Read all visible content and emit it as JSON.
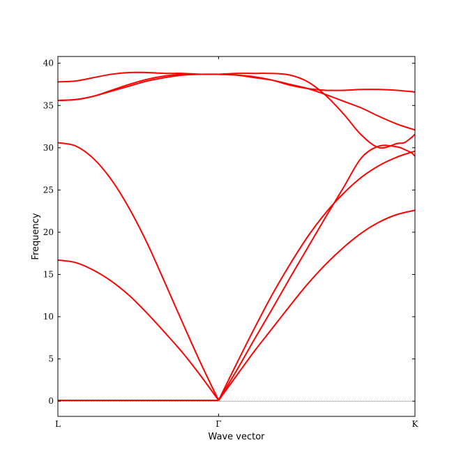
{
  "chart_data": {
    "type": "line",
    "title": "",
    "xlabel": "Wave vector",
    "ylabel": "Frequency",
    "x_ticks": [
      {
        "pos": 0.0,
        "label": "L"
      },
      {
        "pos": 0.45,
        "label": "Γ"
      },
      {
        "pos": 1.0,
        "label": "K"
      }
    ],
    "xlim": [
      0,
      1
    ],
    "ylim": [
      -1.8,
      40.8
    ],
    "y_ticks": [
      0,
      5,
      10,
      15,
      20,
      25,
      30,
      35,
      40
    ],
    "grid": false,
    "legend": "none",
    "line_color": "#ff0000",
    "zero_line_color": "#0000ff",
    "series": [
      {
        "x": [
          0,
          0.05,
          0.1,
          0.15,
          0.2,
          0.25,
          0.3,
          0.35,
          0.4,
          0.45,
          0.5,
          0.55,
          0.6,
          0.65,
          0.7,
          0.75,
          0.8,
          0.85,
          0.9,
          0.95,
          1.0
        ],
        "values": [
          16.7,
          16.4,
          15.5,
          14.2,
          12.5,
          10.4,
          8.1,
          5.7,
          3.0,
          0.1,
          3.0,
          5.9,
          8.6,
          11.3,
          13.9,
          16.2,
          18.2,
          19.9,
          21.2,
          22.1,
          22.6
        ]
      },
      {
        "x": [
          0,
          0.05,
          0.1,
          0.15,
          0.2,
          0.25,
          0.3,
          0.35,
          0.4,
          0.45,
          0.5,
          0.55,
          0.6,
          0.65,
          0.7,
          0.75,
          0.8,
          0.85,
          0.9,
          0.95,
          0.97,
          0.99,
          1.0
        ],
        "values": [
          30.6,
          30.2,
          28.7,
          26.2,
          22.8,
          18.7,
          14.0,
          9.2,
          4.5,
          0.1,
          3.6,
          7.3,
          10.9,
          14.6,
          18.2,
          21.8,
          25.3,
          28.8,
          30.2,
          30.1,
          29.8,
          29.4,
          29.0
        ]
      },
      {
        "x": [
          0,
          0.45,
          0.5,
          0.55,
          0.6,
          0.65,
          0.7,
          0.75,
          0.8,
          0.85,
          0.9,
          0.95,
          1.0
        ],
        "values": [
          0.1,
          0.1,
          4.4,
          8.6,
          12.6,
          16.2,
          19.5,
          22.3,
          24.6,
          26.5,
          27.9,
          28.9,
          29.6
        ]
      },
      {
        "x": [
          0,
          0.05,
          0.1,
          0.15,
          0.2,
          0.25,
          0.3,
          0.35,
          0.4,
          0.45,
          0.5,
          0.55,
          0.6,
          0.65,
          0.7,
          0.75,
          0.8,
          0.85,
          0.9,
          0.95,
          1.0
        ],
        "values": [
          35.6,
          35.7,
          36.1,
          36.8,
          37.5,
          38.1,
          38.5,
          38.7,
          38.7,
          38.7,
          38.6,
          38.3,
          38.0,
          37.5,
          37.0,
          36.3,
          35.5,
          34.7,
          33.7,
          32.8,
          32.1
        ]
      },
      {
        "x": [
          0,
          0.05,
          0.1,
          0.15,
          0.2,
          0.25,
          0.3,
          0.35,
          0.4,
          0.45,
          0.5,
          0.55,
          0.6,
          0.65,
          0.7,
          0.75,
          0.8,
          0.85,
          0.9,
          0.95,
          0.97,
          0.99,
          1.0
        ],
        "values": [
          35.6,
          35.7,
          36.1,
          36.7,
          37.3,
          37.9,
          38.3,
          38.6,
          38.7,
          38.7,
          38.8,
          38.8,
          38.8,
          38.6,
          37.8,
          36.2,
          34.0,
          31.5,
          30.0,
          30.5,
          30.6,
          31.2,
          31.6
        ]
      },
      {
        "x": [
          0,
          0.05,
          0.1,
          0.15,
          0.2,
          0.25,
          0.3,
          0.35,
          0.4,
          0.45,
          0.5,
          0.55,
          0.6,
          0.65,
          0.7,
          0.75,
          0.8,
          0.85,
          0.9,
          0.95,
          1.0
        ],
        "values": [
          37.8,
          37.9,
          38.3,
          38.7,
          38.9,
          38.9,
          38.8,
          38.8,
          38.7,
          38.7,
          38.6,
          38.4,
          38.0,
          37.4,
          37.0,
          36.8,
          36.8,
          36.9,
          36.9,
          36.8,
          36.6
        ]
      }
    ]
  }
}
